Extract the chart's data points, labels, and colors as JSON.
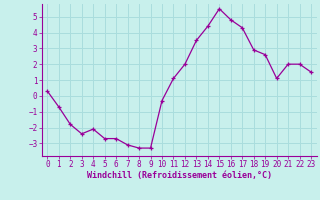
{
  "x": [
    0,
    1,
    2,
    3,
    4,
    5,
    6,
    7,
    8,
    9,
    10,
    11,
    12,
    13,
    14,
    15,
    16,
    17,
    18,
    19,
    20,
    21,
    22,
    23
  ],
  "y": [
    0.3,
    -0.7,
    -1.8,
    -2.4,
    -2.1,
    -2.7,
    -2.7,
    -3.1,
    -3.3,
    -3.3,
    -0.3,
    1.1,
    2.0,
    3.5,
    4.4,
    5.5,
    4.8,
    4.3,
    2.9,
    2.6,
    1.1,
    2.0,
    2.0,
    1.5
  ],
  "line_color": "#990099",
  "marker": "P",
  "marker_size": 2.5,
  "bg_color": "#c8f0ec",
  "grid_color": "#aadddd",
  "xlabel": "Windchill (Refroidissement éolien,°C)",
  "xlabel_color": "#990099",
  "tick_color": "#990099",
  "spine_color": "#990099",
  "ylim": [
    -3.8,
    5.8
  ],
  "xlim": [
    -0.5,
    23.5
  ],
  "yticks": [
    -3,
    -2,
    -1,
    0,
    1,
    2,
    3,
    4,
    5
  ],
  "xticks": [
    0,
    1,
    2,
    3,
    4,
    5,
    6,
    7,
    8,
    9,
    10,
    11,
    12,
    13,
    14,
    15,
    16,
    17,
    18,
    19,
    20,
    21,
    22,
    23
  ],
  "tick_fontsize": 5.5,
  "xlabel_fontsize": 6.0,
  "xlabel_fontweight": "bold"
}
